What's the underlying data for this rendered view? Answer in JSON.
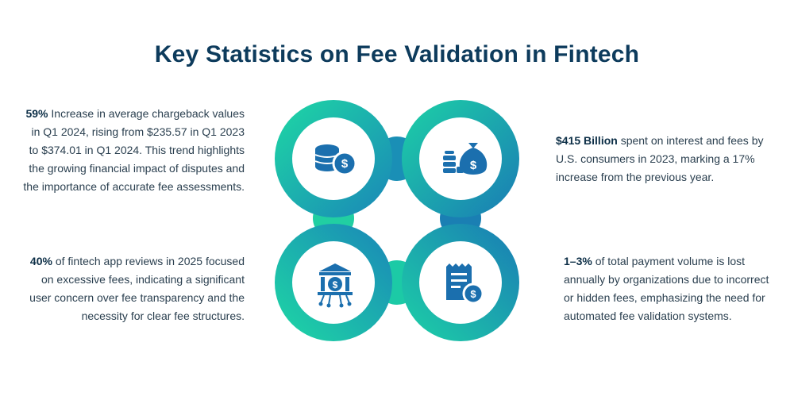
{
  "title": "Key Statistics on Fee Validation in Fintech",
  "colors": {
    "gradient_start": "#1ed8a4",
    "gradient_end": "#1a7bb5",
    "title": "#0d3b5c",
    "icon": "#1b6fae"
  },
  "stats": [
    {
      "highlight": "59%",
      "text": " Increase in average chargeback values in Q1 2024, rising from $235.57 in Q1 2023 to $374.01 in Q1 2024. This trend highlights the growing financial impact of disputes and the importance of accurate fee assessments.",
      "icon": "coins-dollar-icon"
    },
    {
      "highlight": "$415 Billion",
      "text": " spent on interest and fees by U.S. consumers in 2023, marking a 17% increase from the previous year.",
      "icon": "money-bag-icon"
    },
    {
      "highlight": "40%",
      "text": " of fintech app reviews in 2025 focused on excessive fees, indicating a significant user concern over fee transparency and the necessity for clear fee structures.",
      "icon": "bank-network-icon"
    },
    {
      "highlight": "1–3%",
      "text": " of total payment volume is lost annually by organizations due to incorrect or hidden fees, emphasizing the need for automated fee validation systems.",
      "icon": "invoice-dollar-icon"
    }
  ]
}
